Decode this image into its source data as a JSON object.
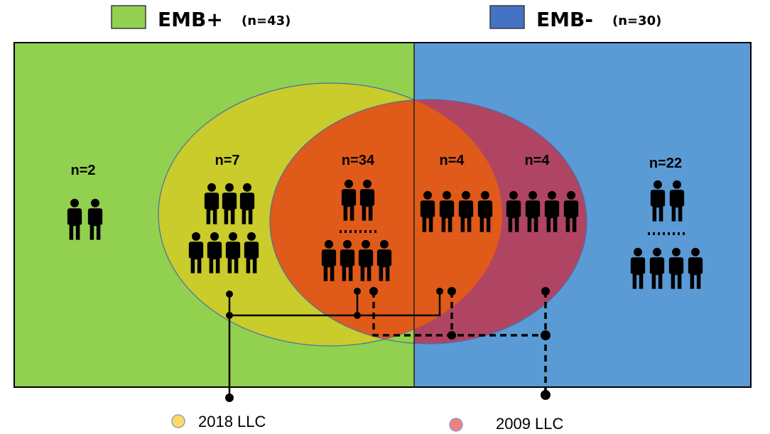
{
  "header": {
    "groups": [
      {
        "label": "EMB+",
        "n": "(n=43)",
        "color": "#92d050"
      },
      {
        "label": "EMB-",
        "n": "(n=30)",
        "color": "#4472c4"
      }
    ]
  },
  "colors": {
    "left_area": "#92d050",
    "right_area": "#5b9bd5",
    "llc_2018_circle": "#c9cc2a",
    "overlap_region": "#e05a1a",
    "llc_2009_circle_right": "#b04563",
    "legend_2018": "#ffd966",
    "legend_2009": "#f08080"
  },
  "regions": [
    {
      "id": "emb-pos-only",
      "count": "n=2"
    },
    {
      "id": "llc2018-only-emb-pos",
      "count": "n=7"
    },
    {
      "id": "both-emb-pos",
      "count": "n=34"
    },
    {
      "id": "both-emb-neg",
      "count": "n=4"
    },
    {
      "id": "llc2009-only-emb-neg",
      "count": "n=4"
    },
    {
      "id": "emb-neg-only",
      "count": "n=22"
    }
  ],
  "legend": {
    "llc_2018": "2018 LLC",
    "llc_2009": "2009 LLC"
  }
}
